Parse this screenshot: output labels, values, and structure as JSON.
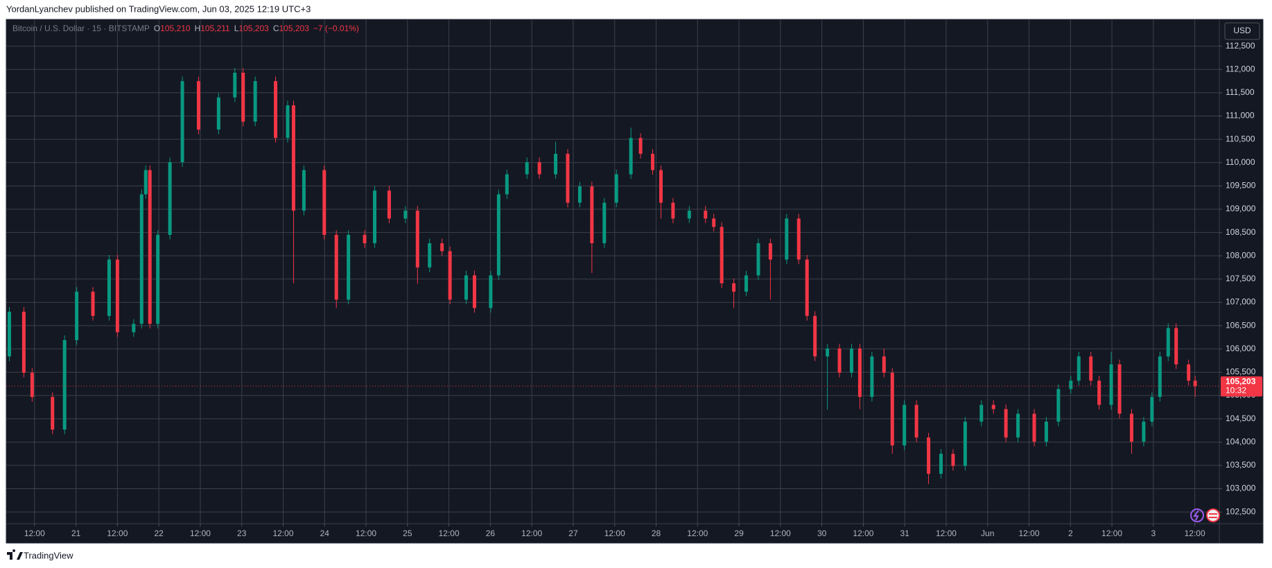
{
  "header": {
    "text": "YordanLyanchev published on TradingView.com, Jun 03, 2025 12:19 UTC+3"
  },
  "footer": {
    "brand": "TradingView"
  },
  "chart_data": {
    "type": "candlestick",
    "currency_button": "USD",
    "legend": {
      "symbol": "Bitcoin / U.S. Dollar · 15 · BITSTAMP",
      "fields": [
        {
          "key": "O",
          "value": "105,210"
        },
        {
          "key": "H",
          "value": "105,211"
        },
        {
          "key": "L",
          "value": "105,203"
        },
        {
          "key": "C",
          "value": "105,203"
        }
      ],
      "change": "−7 (−0.01%)"
    },
    "last_price": {
      "value": 105203,
      "label": "105,203",
      "countdown": "10:32",
      "color": "#f23645"
    },
    "grid": true,
    "xlim": [
      3.8,
      355.1
    ],
    "ylim": [
      102250,
      113075
    ],
    "xticks": [
      {
        "value": 12,
        "label": "12:00"
      },
      {
        "value": 24,
        "label": "21"
      },
      {
        "value": 36,
        "label": "12:00"
      },
      {
        "value": 48,
        "label": "22"
      },
      {
        "value": 60,
        "label": "12:00"
      },
      {
        "value": 72,
        "label": "23"
      },
      {
        "value": 84,
        "label": "12:00"
      },
      {
        "value": 96,
        "label": "24"
      },
      {
        "value": 108,
        "label": "12:00"
      },
      {
        "value": 120,
        "label": "25"
      },
      {
        "value": 132,
        "label": "12:00"
      },
      {
        "value": 144,
        "label": "26"
      },
      {
        "value": 156,
        "label": "12:00"
      },
      {
        "value": 168,
        "label": "27"
      },
      {
        "value": 180,
        "label": "12:00"
      },
      {
        "value": 192,
        "label": "28"
      },
      {
        "value": 204,
        "label": "12:00"
      },
      {
        "value": 216,
        "label": "29"
      },
      {
        "value": 228,
        "label": "12:00"
      },
      {
        "value": 240,
        "label": "30"
      },
      {
        "value": 252,
        "label": "12:00"
      },
      {
        "value": 264,
        "label": "31"
      },
      {
        "value": 276,
        "label": "12:00"
      },
      {
        "value": 288,
        "label": "Jun"
      },
      {
        "value": 300,
        "label": "12:00"
      },
      {
        "value": 312,
        "label": "2"
      },
      {
        "value": 324,
        "label": "12:00"
      },
      {
        "value": 336,
        "label": "3"
      },
      {
        "value": 348,
        "label": "12:00"
      }
    ],
    "yticks": [
      {
        "value": 102500,
        "label": "102,500"
      },
      {
        "value": 103000,
        "label": "103,000"
      },
      {
        "value": 103500,
        "label": "103,500"
      },
      {
        "value": 104000,
        "label": "104,000"
      },
      {
        "value": 104500,
        "label": "104,500"
      },
      {
        "value": 105000,
        "label": "105,000"
      },
      {
        "value": 105500,
        "label": "105,500"
      },
      {
        "value": 106000,
        "label": "106,000"
      },
      {
        "value": 106500,
        "label": "106,500"
      },
      {
        "value": 107000,
        "label": "107,000"
      },
      {
        "value": 107500,
        "label": "107,500"
      },
      {
        "value": 108000,
        "label": "108,000"
      },
      {
        "value": 108500,
        "label": "108,500"
      },
      {
        "value": 109000,
        "label": "109,000"
      },
      {
        "value": 109500,
        "label": "109,500"
      },
      {
        "value": 110000,
        "label": "110,000"
      },
      {
        "value": 110500,
        "label": "110,500"
      },
      {
        "value": 111000,
        "label": "111,000"
      },
      {
        "value": 111500,
        "label": "111,500"
      },
      {
        "value": 112000,
        "label": "112,000"
      },
      {
        "value": 112500,
        "label": "112,500"
      }
    ],
    "x": [
      4.7,
      8.9,
      11.3,
      17.2,
      20.7,
      24.2,
      28.9,
      33.6,
      36.0,
      40.7,
      43.0,
      44.2,
      45.4,
      47.7,
      51.2,
      54.8,
      59.5,
      65.3,
      70.0,
      72.4,
      75.9,
      81.8,
      85.3,
      87.0,
      90.0,
      95.9,
      99.4,
      102.9,
      107.6,
      110.5,
      114.7,
      119.4,
      122.9,
      126.4,
      130.0,
      132.3,
      137.0,
      139.4,
      144.1,
      146.4,
      148.8,
      154.6,
      158.2,
      162.9,
      166.4,
      169.9,
      173.4,
      177.0,
      180.5,
      184.7,
      187.5,
      191.0,
      193.4,
      196.9,
      201.6,
      206.3,
      208.7,
      211.0,
      214.5,
      218.1,
      221.6,
      225.1,
      229.8,
      233.3,
      235.7,
      238.0,
      241.6,
      245.1,
      248.6,
      251.0,
      254.5,
      258.0,
      260.4,
      263.9,
      267.4,
      270.9,
      274.5,
      278.0,
      281.5,
      286.2,
      289.7,
      293.3,
      296.8,
      301.5,
      305.0,
      308.5,
      312.1,
      314.4,
      317.9,
      320.3,
      323.8,
      326.2,
      329.7,
      333.2,
      335.6,
      337.9,
      340.3,
      342.6,
      346.2,
      348.1
    ],
    "series": [
      {
        "name": "Bitcoin / U.S. Dollar · 15 · BITSTAMP",
        "up_color": "#089981",
        "down_color": "#f23645",
        "open": [
          105840,
          106800,
          105490,
          104970,
          104270,
          106190,
          107230,
          106710,
          107920,
          106360,
          106540,
          109320,
          109840,
          106540,
          108450,
          110010,
          111750,
          110710,
          111400,
          111930,
          110880,
          111750,
          110530,
          111230,
          108970,
          109840,
          108450,
          107060,
          108450,
          108270,
          109400,
          108800,
          108970,
          107750,
          108270,
          108100,
          107060,
          107580,
          106880,
          107580,
          109320,
          109750,
          110010,
          109750,
          110190,
          109140,
          109490,
          108270,
          109140,
          109750,
          110530,
          110190,
          109840,
          109140,
          108800,
          108970,
          108800,
          108620,
          107410,
          107230,
          107580,
          108270,
          107920,
          108800,
          107920,
          106710,
          105840,
          106010,
          105490,
          106010,
          104970,
          105840,
          105490,
          103930,
          104800,
          104100,
          103320,
          103750,
          103490,
          104440,
          104800,
          104710,
          104100,
          104610,
          104010,
          104440,
          105140,
          105320,
          105840,
          105320,
          104800,
          105670,
          104610,
          104010,
          104440,
          104970,
          105840,
          106450,
          105670,
          105320
        ],
        "high": [
          106900,
          106900,
          105590,
          105070,
          106290,
          107330,
          107330,
          108020,
          108020,
          106640,
          109420,
          109940,
          109940,
          108550,
          110110,
          111850,
          111850,
          111500,
          112030,
          112030,
          111850,
          111850,
          111330,
          111330,
          109940,
          109940,
          108550,
          108550,
          108550,
          109500,
          109500,
          109070,
          109070,
          108370,
          108370,
          108200,
          107680,
          107680,
          107680,
          109420,
          109850,
          110110,
          110110,
          110450,
          110290,
          109590,
          109590,
          109240,
          109850,
          110750,
          110630,
          110290,
          109940,
          109240,
          109070,
          109070,
          108900,
          108720,
          107510,
          107680,
          108370,
          108370,
          108900,
          108900,
          108020,
          106810,
          106110,
          106110,
          106110,
          106110,
          105940,
          106010,
          105590,
          104900,
          104900,
          104200,
          103850,
          103850,
          104540,
          104900,
          104900,
          104810,
          104710,
          104710,
          104540,
          105240,
          105420,
          105940,
          105940,
          105420,
          105940,
          105770,
          104710,
          104540,
          105070,
          105940,
          106550,
          106550,
          105770,
          105420
        ],
        "low": [
          105740,
          105390,
          104870,
          104170,
          104170,
          106090,
          106610,
          106610,
          106260,
          106260,
          106440,
          109220,
          106440,
          106440,
          108350,
          109910,
          110610,
          110610,
          111300,
          110780,
          110780,
          110430,
          110430,
          107410,
          108870,
          108350,
          106880,
          106960,
          108170,
          108170,
          108700,
          108700,
          107400,
          107650,
          108000,
          106960,
          106960,
          106780,
          106780,
          107480,
          109220,
          109650,
          109650,
          109650,
          109040,
          109040,
          107630,
          108170,
          109040,
          109650,
          110090,
          109740,
          108800,
          108700,
          108700,
          108700,
          108520,
          107310,
          106880,
          107130,
          107480,
          107060,
          107820,
          107820,
          106610,
          105740,
          104700,
          105390,
          105390,
          104710,
          104870,
          105390,
          103750,
          103830,
          104000,
          103100,
          103220,
          103390,
          103390,
          104340,
          104610,
          104000,
          104000,
          103910,
          103910,
          104340,
          105040,
          105220,
          105220,
          104700,
          104700,
          104510,
          103750,
          103910,
          104340,
          104870,
          105740,
          105570,
          105220,
          104970
        ],
        "close": [
          106800,
          105490,
          104970,
          104270,
          106190,
          107230,
          106710,
          107920,
          106360,
          106540,
          109320,
          109840,
          106540,
          108450,
          110010,
          111750,
          110710,
          111400,
          111930,
          110880,
          111750,
          110530,
          111230,
          108970,
          109840,
          108450,
          107060,
          108450,
          108270,
          109400,
          108800,
          108970,
          107750,
          108270,
          108100,
          107060,
          107580,
          106880,
          107580,
          109320,
          109750,
          110010,
          109750,
          110190,
          109140,
          109490,
          108270,
          109140,
          109750,
          110530,
          110190,
          109840,
          109140,
          108800,
          108970,
          108800,
          108620,
          107410,
          107230,
          107580,
          108270,
          107920,
          108800,
          107920,
          106710,
          105840,
          106010,
          105490,
          106010,
          104970,
          105840,
          105490,
          103930,
          104800,
          104100,
          103320,
          103750,
          103490,
          104440,
          104800,
          104710,
          104100,
          104610,
          104010,
          104440,
          105140,
          105320,
          105840,
          105320,
          104800,
          105670,
          104610,
          104010,
          104440,
          104970,
          105840,
          106450,
          105670,
          105320,
          105203
        ]
      }
    ]
  }
}
